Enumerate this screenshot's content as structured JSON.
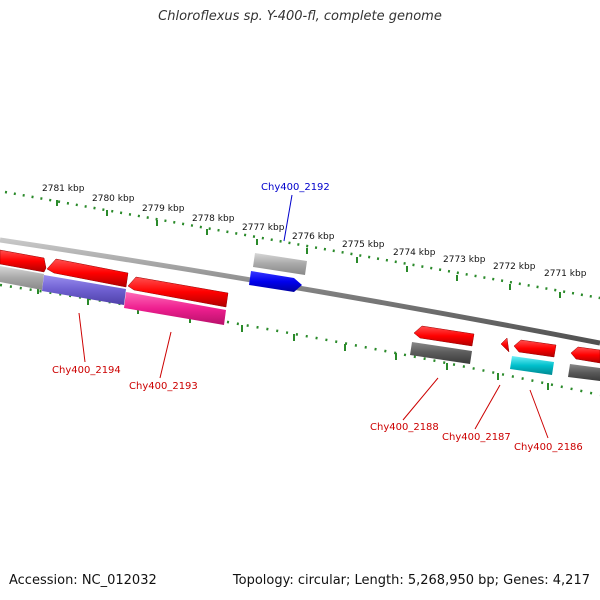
{
  "title": "Chloroflexus sp. Y-400-fl, complete genome",
  "footer": {
    "accession": "Accession: NC_012032",
    "summary": "Topology: circular; Length: 5,268,950 bp; Genes: 4,217"
  },
  "ruler": {
    "color": "#2a8a2a",
    "ticks": [
      "2781 kbp",
      "2780 kbp",
      "2779 kbp",
      "2778 kbp",
      "2777 kbp",
      "2776 kbp",
      "2775 kbp",
      "2774 kbp",
      "2773 kbp",
      "2772 kbp",
      "2771 kbp"
    ]
  },
  "labels": [
    {
      "id": "Chy400_2192",
      "text": "Chy400_2192",
      "color": "#0000cc"
    },
    {
      "id": "Chy400_2194",
      "text": "Chy400_2194",
      "color": "#cc0000"
    },
    {
      "id": "Chy400_2193",
      "text": "Chy400_2193",
      "color": "#cc0000"
    },
    {
      "id": "Chy400_2188",
      "text": "Chy400_2188",
      "color": "#cc0000"
    },
    {
      "id": "Chy400_2187",
      "text": "Chy400_2187",
      "color": "#cc0000"
    },
    {
      "id": "Chy400_2186",
      "text": "Chy400_2186",
      "color": "#cc0000"
    }
  ],
  "colors": {
    "backbone": "#808080",
    "cds": "#ff0000",
    "gene": "#a8a8a8",
    "gene_dark": "#5a5a5a",
    "highlight_blue": "#0000ee",
    "purple": "#6e5fd0",
    "magenta": "#ee1f8f",
    "cyan": "#00c0cc"
  }
}
